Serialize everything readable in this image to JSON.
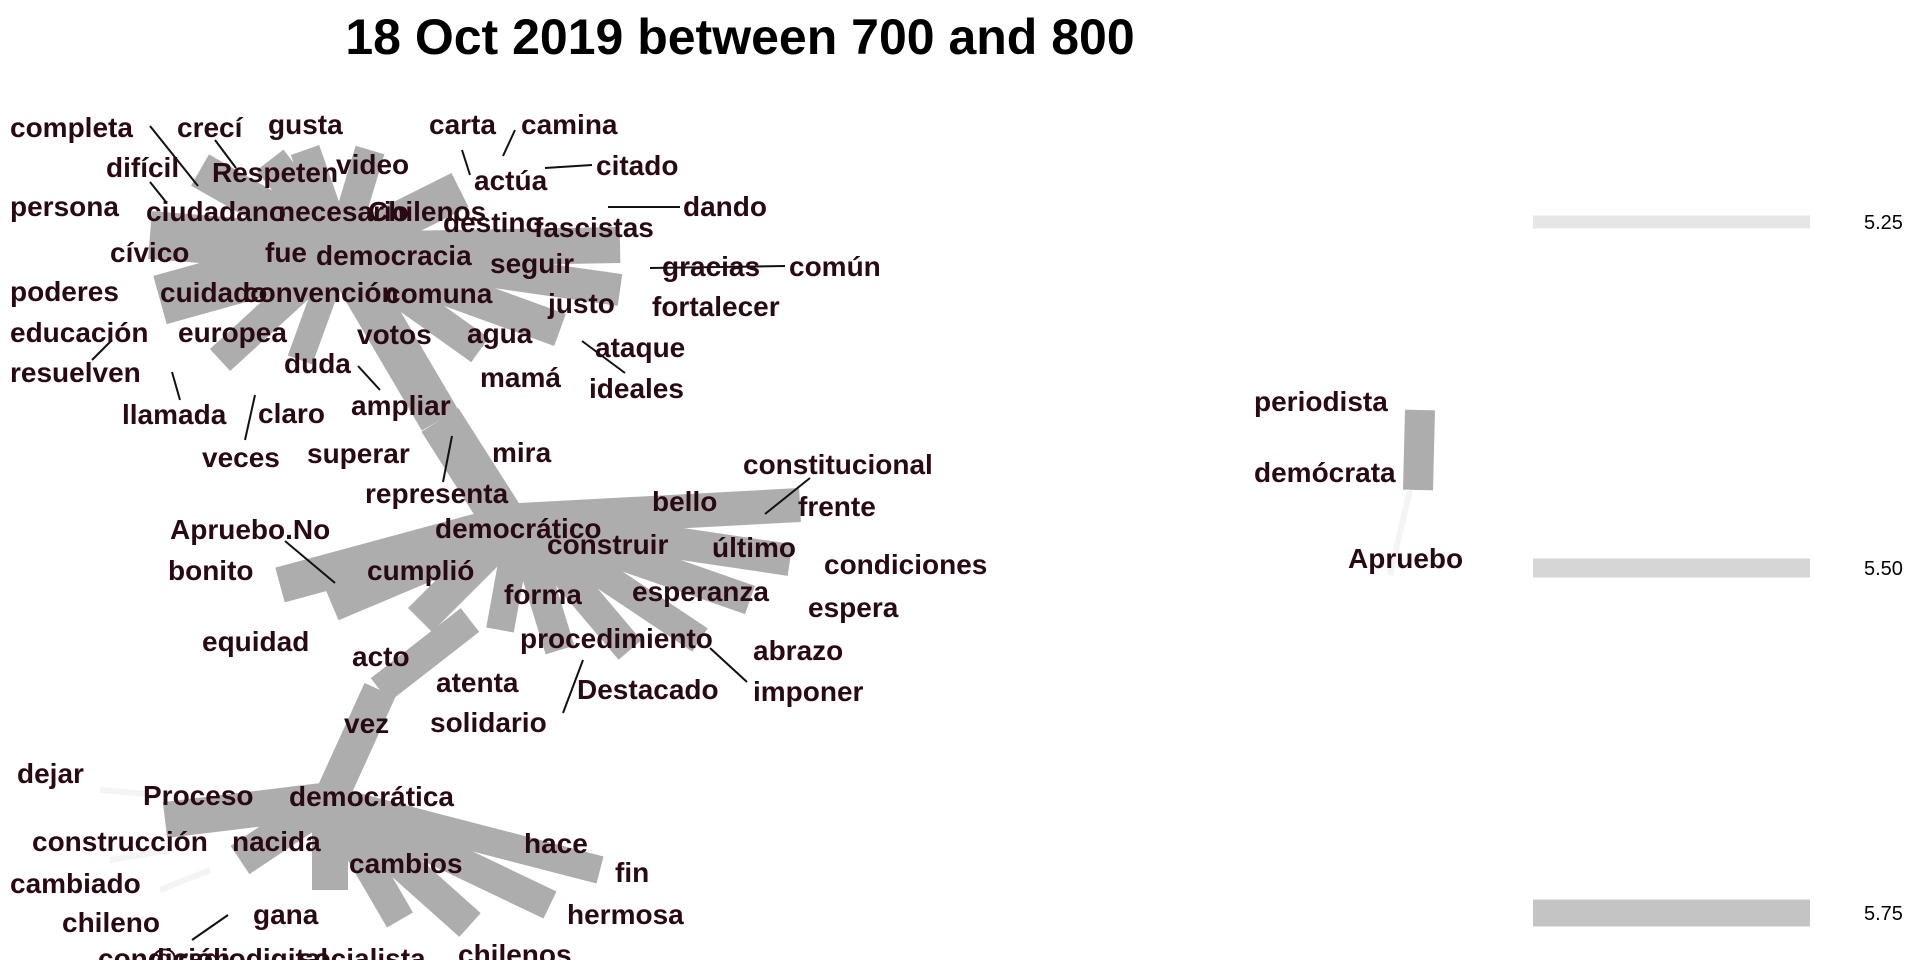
{
  "title": "18 Oct 2019 between 700 and 800",
  "colors": {
    "edge": "#adadad",
    "text": "#2a0a12",
    "faint": "#f4f4f4",
    "legend": [
      "#e6e6e6",
      "#d6d6d6",
      "#c4c4c4"
    ]
  },
  "legend": {
    "labels": [
      "5.25",
      "5.50",
      "5.75"
    ]
  },
  "words": [
    "completa",
    "crecí",
    "gusta",
    "carta",
    "camina",
    "difícil",
    "Respeten",
    "video",
    "actúa",
    "citado",
    "persona",
    "ciudadano",
    "necesario",
    "Chilenos",
    "destino",
    "fascistas",
    "dando",
    "cívico",
    "fue",
    "democracia",
    "seguir",
    "gracias",
    "común",
    "poderes",
    "cuidado",
    "convención",
    "comuna",
    "justo",
    "fortalecer",
    "educación",
    "europea",
    "votos",
    "agua",
    "ataque",
    "resuelven",
    "duda",
    "mamá",
    "ideales",
    "llamada",
    "claro",
    "ampliar",
    "veces",
    "superar",
    "mira",
    "representa",
    "constitucional",
    "bello",
    "frente",
    "Apruebo.No",
    "democrático",
    "construir",
    "último",
    "condiciones",
    "bonito",
    "cumplió",
    "esperanza",
    "forma",
    "espera",
    "equidad",
    "acto",
    "procedimiento",
    "abrazo",
    "Destacado",
    "atenta",
    "imponer",
    "vez",
    "solidario",
    "dejar",
    "Proceso",
    "democrática",
    "construcción",
    "nacida",
    "hace",
    "cambios",
    "fin",
    "cambiado",
    "hermosa",
    "chileno",
    "gana",
    "condición",
    "@radiodigital",
    "socialista",
    "chilenos",
    "periodista",
    "demócrata",
    "Apruebo"
  ]
}
